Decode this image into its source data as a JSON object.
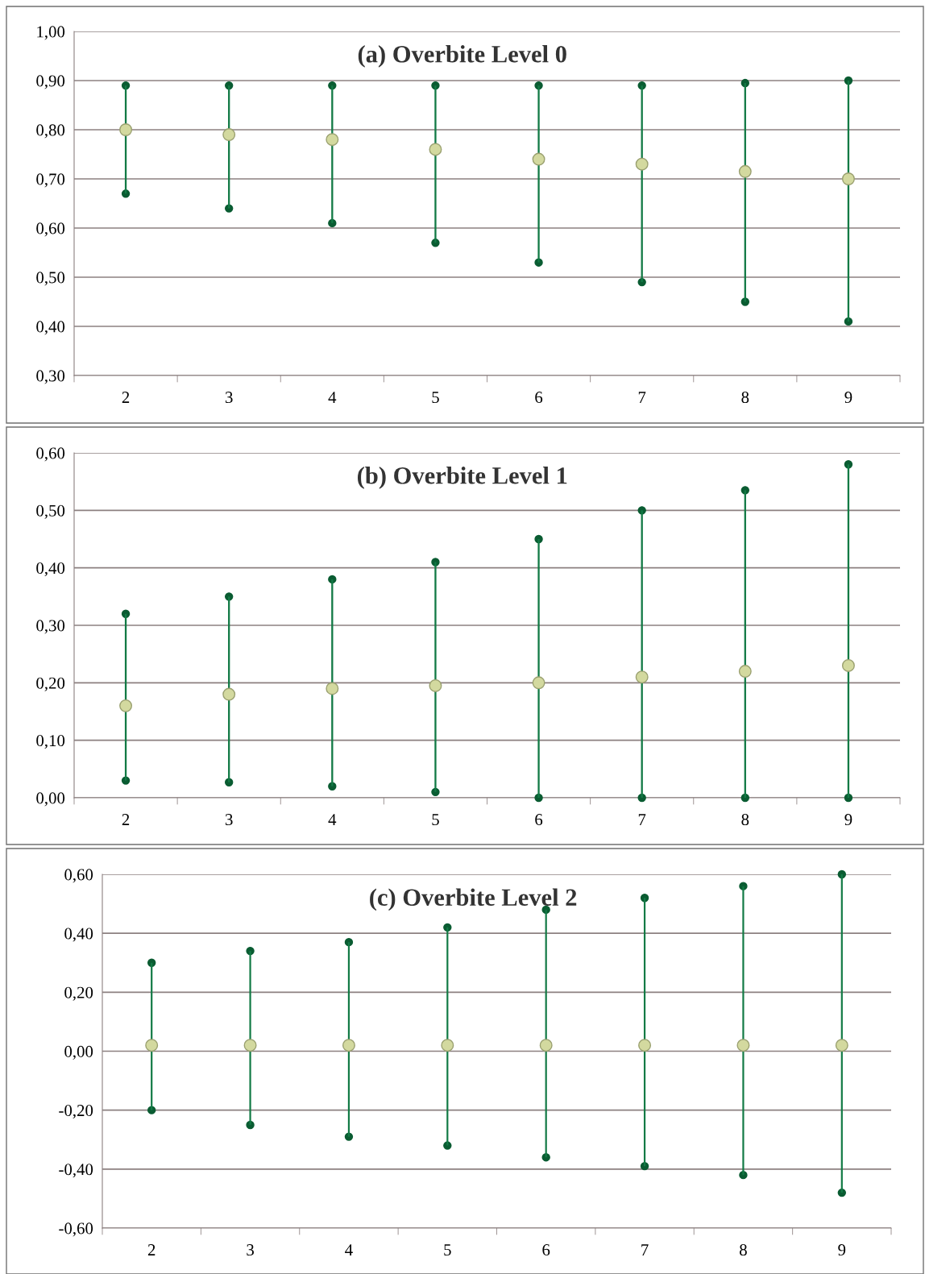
{
  "chart_data": [
    {
      "type": "bar",
      "title": "(a) Overbite Level 0",
      "categories": [
        "2",
        "3",
        "4",
        "5",
        "6",
        "7",
        "8",
        "9"
      ],
      "series": [
        {
          "type": "bar",
          "color": "#127a45",
          "base": [
            0.67,
            0.64,
            0.61,
            0.57,
            0.53,
            0.49,
            0.45,
            0.41
          ],
          "values": [
            0.22,
            0.25,
            0.28,
            0.32,
            0.36,
            0.4,
            0.445,
            0.49
          ]
        },
        {
          "type": "scatter",
          "color": "#0a5c32",
          "values": [
            0.67,
            0.64,
            0.61,
            0.57,
            0.53,
            0.49,
            0.45,
            0.41
          ]
        },
        {
          "type": "scatter",
          "color": "#0a5c32",
          "values": [
            0.89,
            0.89,
            0.89,
            0.89,
            0.89,
            0.89,
            0.895,
            0.9
          ]
        },
        {
          "type": "scatter",
          "color": "#d3d99f",
          "values": [
            0.8,
            0.79,
            0.78,
            0.76,
            0.74,
            0.73,
            0.715,
            0.7
          ]
        }
      ],
      "ylim": [
        0.3,
        1.0
      ],
      "yticks": [
        {
          "value": 0.3,
          "label": "0,30"
        },
        {
          "value": 0.4,
          "label": "0,40"
        },
        {
          "value": 0.5,
          "label": "0,50"
        },
        {
          "value": 0.6,
          "label": "0,60"
        },
        {
          "value": 0.7,
          "label": "0,70"
        },
        {
          "value": 0.8,
          "label": "0,80"
        },
        {
          "value": 0.9,
          "label": "0,90"
        },
        {
          "value": 1.0,
          "label": "1,00"
        }
      ],
      "grid": "y",
      "marker": "circle"
    },
    {
      "type": "bar",
      "title": "(b) Overbite Level 1",
      "categories": [
        "2",
        "3",
        "4",
        "5",
        "6",
        "7",
        "8",
        "9"
      ],
      "series": [
        {
          "type": "bar",
          "color": "#127a45",
          "base": [
            0.03,
            0.027,
            0.02,
            0.01,
            0.0,
            0.0,
            0.0,
            0.0
          ],
          "values": [
            0.29,
            0.323,
            0.36,
            0.4,
            0.45,
            0.5,
            0.535,
            0.58
          ]
        },
        {
          "type": "scatter",
          "color": "#0a5c32",
          "values": [
            0.03,
            0.027,
            0.02,
            0.01,
            0.0,
            0.0,
            0.0,
            0.0
          ]
        },
        {
          "type": "scatter",
          "color": "#0a5c32",
          "values": [
            0.32,
            0.35,
            0.38,
            0.41,
            0.45,
            0.5,
            0.535,
            0.58
          ]
        },
        {
          "type": "scatter",
          "color": "#d3d99f",
          "values": [
            0.16,
            0.18,
            0.19,
            0.195,
            0.2,
            0.21,
            0.22,
            0.23
          ]
        }
      ],
      "ylim": [
        0.0,
        0.6
      ],
      "yticks": [
        {
          "value": 0.0,
          "label": "0,00"
        },
        {
          "value": 0.1,
          "label": "0,10"
        },
        {
          "value": 0.2,
          "label": "0,20"
        },
        {
          "value": 0.3,
          "label": "0,30"
        },
        {
          "value": 0.4,
          "label": "0,40"
        },
        {
          "value": 0.5,
          "label": "0,50"
        },
        {
          "value": 0.6,
          "label": "0,60"
        }
      ],
      "grid": "y",
      "marker": "circle"
    },
    {
      "type": "bar",
      "title": "(c) Overbite Level 2",
      "categories": [
        "2",
        "3",
        "4",
        "5",
        "6",
        "7",
        "8",
        "9"
      ],
      "series": [
        {
          "type": "bar",
          "color": "#127a45",
          "base": [
            -0.2,
            -0.25,
            -0.29,
            -0.32,
            -0.36,
            -0.39,
            -0.42,
            -0.48
          ],
          "values": [
            0.5,
            0.59,
            0.66,
            0.74,
            0.84,
            0.91,
            0.98,
            1.08
          ]
        },
        {
          "type": "scatter",
          "color": "#0a5c32",
          "values": [
            -0.2,
            -0.25,
            -0.29,
            -0.32,
            -0.36,
            -0.39,
            -0.42,
            -0.48
          ]
        },
        {
          "type": "scatter",
          "color": "#0a5c32",
          "values": [
            0.3,
            0.34,
            0.37,
            0.42,
            0.48,
            0.52,
            0.56,
            0.6
          ]
        },
        {
          "type": "scatter",
          "color": "#d3d99f",
          "values": [
            0.02,
            0.02,
            0.02,
            0.02,
            0.02,
            0.02,
            0.02,
            0.02
          ]
        }
      ],
      "ylim": [
        -0.6,
        0.6
      ],
      "yticks": [
        {
          "value": -0.6,
          "label": "-0,60"
        },
        {
          "value": -0.4,
          "label": "-0,40"
        },
        {
          "value": -0.2,
          "label": "-0,20"
        },
        {
          "value": 0.0,
          "label": "0,00"
        },
        {
          "value": 0.2,
          "label": "0,20"
        },
        {
          "value": 0.4,
          "label": "0,40"
        },
        {
          "value": 0.6,
          "label": "0,60"
        }
      ],
      "grid": "y",
      "marker": "circle"
    }
  ]
}
